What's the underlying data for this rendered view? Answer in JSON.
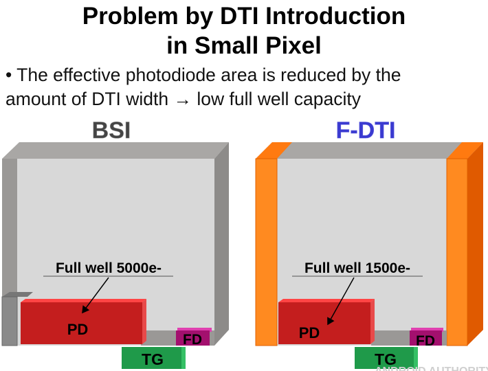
{
  "title": {
    "line1": "Problem by DTI Introduction",
    "line2": "in Small Pixel"
  },
  "bullet": {
    "line1": "• The effective photodiode area is reduced by the",
    "line2": "amount of DTI width → low full well capacity"
  },
  "panels": [
    {
      "heading": "BSI",
      "heading_color": "#444444",
      "full_well": "Full well 5000e-",
      "pd": "PD",
      "fd": "FD",
      "tg": "TG"
    },
    {
      "heading": "F-DTI",
      "heading_color": "#3a3ad0",
      "full_well": "Full well 1500e-",
      "pd": "PD",
      "fd": "FD",
      "tg": "TG"
    }
  ],
  "colors": {
    "pd": "#c41e1e",
    "fd": "#b0157a",
    "tg": "#1f9a4a",
    "dti": "#ff7a10",
    "wall": "#8f8d8b"
  },
  "watermark": "ANDROID AUTHORITY"
}
